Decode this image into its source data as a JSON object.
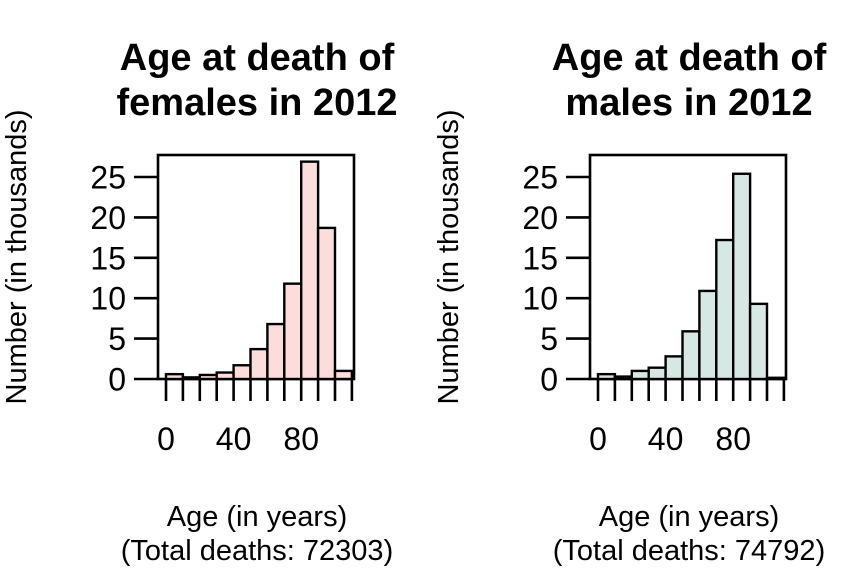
{
  "figure": {
    "background": "#ffffff",
    "line_color": "#000000"
  },
  "chart_data": [
    {
      "type": "bar",
      "variant": "histogram",
      "title_lines": [
        "Age at death of",
        "females in 2012"
      ],
      "ylabel": "Number (in thousands)",
      "xlabel": "Age (in years)",
      "total_label": "(Total deaths: 72303)",
      "total_deaths": 72303,
      "bin_width": 10,
      "bin_starts": [
        0,
        10,
        20,
        30,
        40,
        50,
        60,
        70,
        80,
        90,
        100
      ],
      "values": [
        0.6,
        0.2,
        0.5,
        0.8,
        1.7,
        3.7,
        6.8,
        11.8,
        26.9,
        18.7,
        1.0
      ],
      "x_ticks": [
        0,
        10,
        20,
        30,
        40,
        50,
        60,
        70,
        80,
        90,
        100,
        110
      ],
      "x_tick_labels": [
        "0",
        "",
        "",
        "",
        "40",
        "",
        "",
        "",
        "80",
        "",
        "",
        ""
      ],
      "y_ticks": [
        0,
        5,
        10,
        15,
        20,
        25
      ],
      "ylim": [
        0,
        27.7
      ],
      "xlim": [
        -4.7,
        115.9
      ],
      "grid": false,
      "legend": false,
      "bar_fill": "#fbdddb",
      "bar_stroke": "#000000"
    },
    {
      "type": "bar",
      "variant": "histogram",
      "title_lines": [
        "Age at death of",
        "males in 2012"
      ],
      "ylabel": "Number (in thousands)",
      "xlabel": "Age (in years)",
      "total_label": "(Total deaths: 74792)",
      "total_deaths": 74792,
      "bin_width": 10,
      "bin_starts": [
        0,
        10,
        20,
        30,
        40,
        50,
        60,
        70,
        80,
        90,
        100
      ],
      "values": [
        0.6,
        0.3,
        1.0,
        1.4,
        2.8,
        5.9,
        10.9,
        17.2,
        25.4,
        9.3,
        0.15
      ],
      "x_ticks": [
        0,
        10,
        20,
        30,
        40,
        50,
        60,
        70,
        80,
        90,
        100,
        110
      ],
      "x_tick_labels": [
        "0",
        "",
        "",
        "",
        "40",
        "",
        "",
        "",
        "80",
        "",
        "",
        ""
      ],
      "y_ticks": [
        0,
        5,
        10,
        15,
        20,
        25
      ],
      "ylim": [
        0,
        27.7
      ],
      "xlim": [
        -4.7,
        115.9
      ],
      "grid": false,
      "legend": false,
      "bar_fill": "#d7e7e3",
      "bar_stroke": "#000000"
    }
  ]
}
